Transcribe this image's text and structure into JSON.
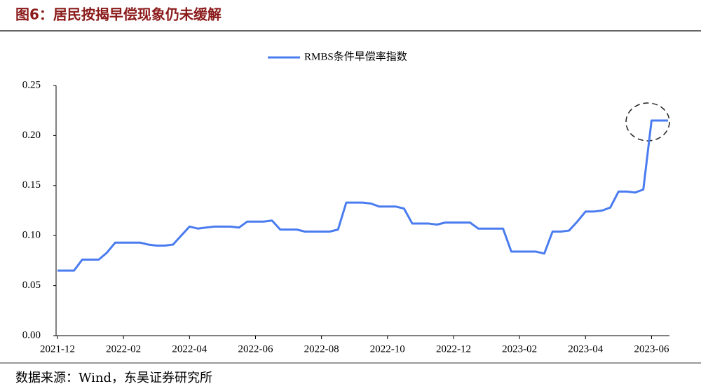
{
  "chart_data": {
    "type": "line",
    "title": "图6：居民按揭早偿现象仍未缓解",
    "source": "数据来源：Wind，东吴证券研究所",
    "categories": [
      "2021-12",
      null,
      null,
      null,
      null,
      null,
      null,
      null,
      "2022-02",
      null,
      null,
      null,
      null,
      null,
      null,
      null,
      "2022-04",
      null,
      null,
      null,
      null,
      null,
      null,
      null,
      "2022-06",
      null,
      null,
      null,
      null,
      null,
      null,
      null,
      "2022-08",
      null,
      null,
      null,
      null,
      null,
      null,
      null,
      "2022-10",
      null,
      null,
      null,
      null,
      null,
      null,
      null,
      "2022-12",
      null,
      null,
      null,
      null,
      null,
      null,
      null,
      "2023-02",
      null,
      null,
      null,
      null,
      null,
      null,
      null,
      "2023-04",
      null,
      null,
      null,
      null,
      null,
      null,
      null,
      "2023-06",
      null,
      null
    ],
    "series": [
      {
        "name": "RMBS条件早偿率指数",
        "color": "#4a7cf0",
        "values": [
          0.065,
          0.065,
          0.065,
          0.076,
          0.076,
          0.076,
          0.083,
          0.093,
          0.093,
          0.093,
          0.093,
          0.091,
          0.09,
          0.09,
          0.091,
          0.1,
          0.109,
          0.107,
          0.108,
          0.109,
          0.109,
          0.109,
          0.108,
          0.114,
          0.114,
          0.114,
          0.115,
          0.106,
          0.106,
          0.106,
          0.104,
          0.104,
          0.104,
          0.104,
          0.106,
          0.133,
          0.133,
          0.133,
          0.132,
          0.129,
          0.129,
          0.129,
          0.127,
          0.112,
          0.112,
          0.112,
          0.111,
          0.113,
          0.113,
          0.113,
          0.113,
          0.107,
          0.107,
          0.107,
          0.107,
          0.084,
          0.084,
          0.084,
          0.084,
          0.082,
          0.104,
          0.104,
          0.105,
          0.114,
          0.124,
          0.124,
          0.125,
          0.128,
          0.144,
          0.144,
          0.143,
          0.146,
          0.215,
          0.215,
          0.215
        ]
      }
    ],
    "ylim": [
      0,
      0.25
    ],
    "yticks": [
      {
        "value": 0,
        "label": "0.00"
      },
      0.05,
      {
        "value": 0.1,
        "label": "0.10"
      },
      0.15,
      {
        "value": 0.2,
        "label": "0.20"
      },
      0.25
    ],
    "grid": false,
    "legend": "top"
  }
}
